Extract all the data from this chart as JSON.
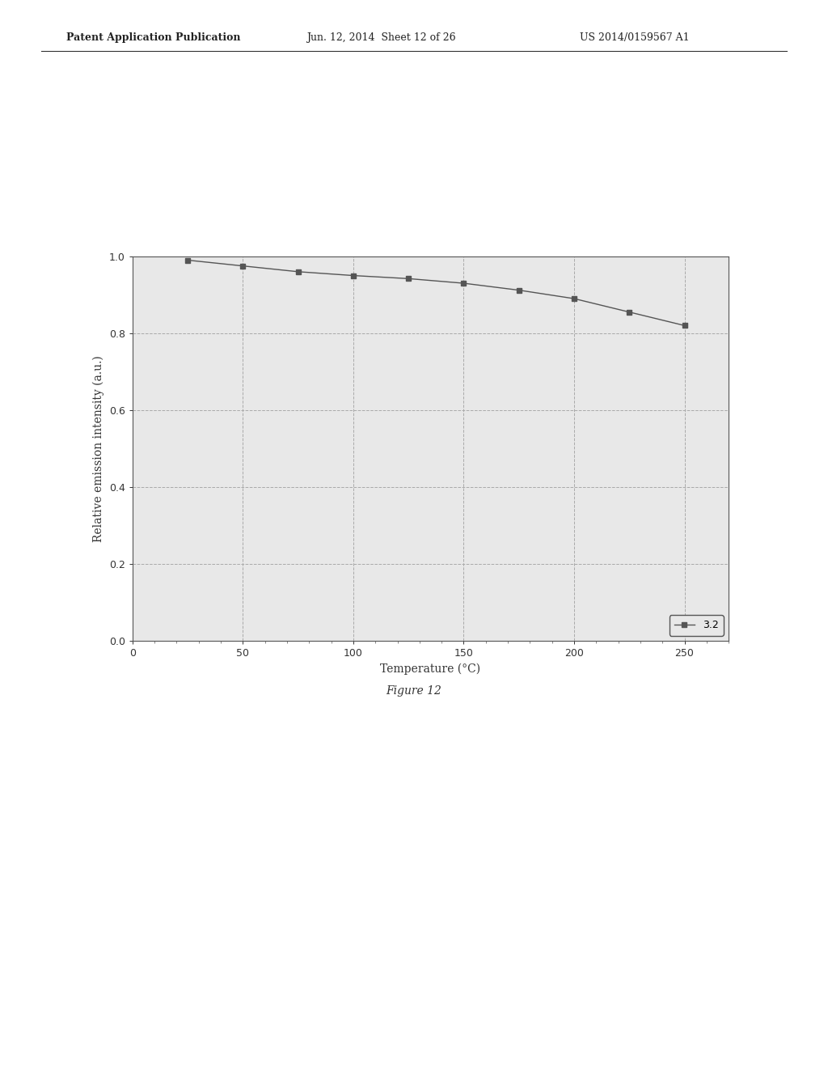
{
  "x": [
    25,
    50,
    75,
    100,
    125,
    150,
    175,
    200,
    225,
    250
  ],
  "y": [
    0.99,
    0.975,
    0.96,
    0.95,
    0.942,
    0.93,
    0.912,
    0.89,
    0.855,
    0.82
  ],
  "legend_label": "3.2",
  "xlabel": "Temperature (°C)",
  "ylabel": "Relative emission intensity (a.u.)",
  "xlim": [
    0,
    270
  ],
  "ylim": [
    0.0,
    1.0
  ],
  "xticks": [
    0,
    50,
    100,
    150,
    200,
    250
  ],
  "yticks": [
    0.0,
    0.2,
    0.4,
    0.6,
    0.8,
    1.0
  ],
  "line_color": "#555555",
  "marker": "s",
  "marker_size": 5,
  "grid_color": "#aaaaaa",
  "background_color": "#e8e8e8",
  "figure_caption": "Figure 12",
  "header_left": "Patent Application Publication",
  "header_center": "Jun. 12, 2014  Sheet 12 of 26",
  "header_right": "US 2014/0159567 A1",
  "label_fontsize": 10,
  "tick_fontsize": 9,
  "legend_fontsize": 9,
  "header_fontsize": 9,
  "caption_fontsize": 10
}
